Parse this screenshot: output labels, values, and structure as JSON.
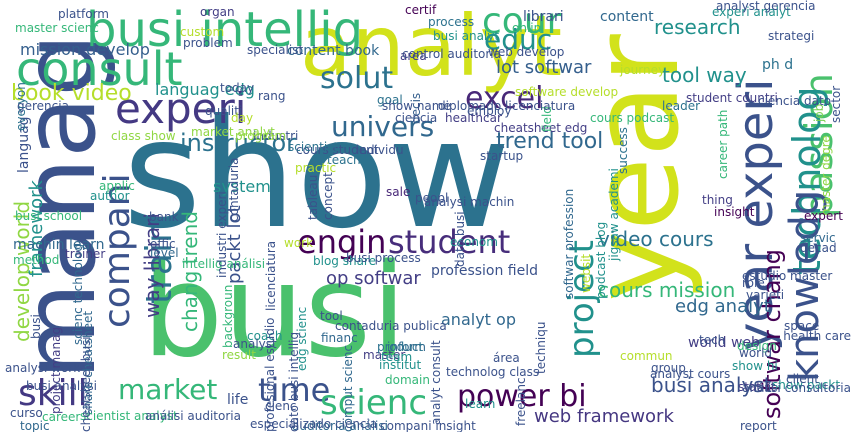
{
  "words": [
    {
      "text": "show",
      "color": "#2c728e"
    },
    {
      "text": "busi",
      "color": "#4ac16d"
    },
    {
      "text": "year",
      "color": "#d2e21b"
    },
    {
      "text": "analyt",
      "color": "#d2e21b"
    },
    {
      "text": "manag",
      "color": "#3b528b"
    },
    {
      "text": "busi intellig",
      "color": "#35b779"
    },
    {
      "text": "consult",
      "color": "#35b779"
    },
    {
      "text": "cour",
      "color": "#35b779"
    },
    {
      "text": "experi",
      "color": "#443983"
    },
    {
      "text": "educ",
      "color": "#21918c"
    },
    {
      "text": "solut",
      "color": "#2c728e"
    },
    {
      "text": "excel",
      "color": "#482878"
    },
    {
      "text": "univers",
      "color": "#31688e"
    },
    {
      "text": "year experi",
      "color": "#3b528b"
    },
    {
      "text": "passion",
      "color": "#4ac16d"
    },
    {
      "text": "technolog",
      "color": "#21918c"
    },
    {
      "text": "knowledg",
      "color": "#3b528b"
    },
    {
      "text": "compani",
      "color": "#3b528b"
    },
    {
      "text": "train",
      "color": "#2c728e"
    },
    {
      "text": "engin",
      "color": "#440154"
    },
    {
      "text": "student",
      "color": "#472d7b"
    },
    {
      "text": "project",
      "color": "#21918c"
    },
    {
      "text": "market",
      "color": "#35b779"
    },
    {
      "text": "time",
      "color": "#3b528b"
    },
    {
      "text": "scienc",
      "color": "#35b779"
    },
    {
      "text": "power bi",
      "color": "#440154"
    },
    {
      "text": "skill",
      "color": "#443983"
    },
    {
      "text": "book video",
      "color": "#b5de2b"
    },
    {
      "text": "languag edg",
      "color": "#21918c"
    },
    {
      "text": "lot softwar",
      "color": "#355f8d"
    },
    {
      "text": "tool way",
      "color": "#21918c"
    },
    {
      "text": "librari",
      "color": "#3b528b"
    },
    {
      "text": "content",
      "color": "#31688e"
    },
    {
      "text": "research",
      "color": "#21918c"
    },
    {
      "text": "mission develop",
      "color": "#355f8d"
    },
    {
      "text": "content book",
      "color": "#31688e"
    },
    {
      "text": "instructor",
      "color": "#2c728e"
    },
    {
      "text": "trend tool",
      "color": "#31688e"
    },
    {
      "text": "video cours",
      "color": "#2c728e"
    },
    {
      "text": "softwar chang",
      "color": "#440154"
    },
    {
      "text": "chang trend",
      "color": "#35b779"
    },
    {
      "text": "way librari",
      "color": "#433e85"
    },
    {
      "text": "packt lot",
      "color": "#3b528b"
    },
    {
      "text": "op softwar",
      "color": "#433e85"
    },
    {
      "text": "profession field",
      "color": "#3b528b"
    },
    {
      "text": "cours mission",
      "color": "#35b779"
    },
    {
      "text": "edg analyt",
      "color": "#31688e"
    },
    {
      "text": "analyt op",
      "color": "#31688e"
    },
    {
      "text": "world web",
      "color": "#433e85"
    },
    {
      "text": "busi analyst",
      "color": "#3b528b"
    },
    {
      "text": "web framework",
      "color": "#453781"
    },
    {
      "text": "develop world",
      "color": "#90d743"
    },
    {
      "text": "framework",
      "color": "#21918c"
    },
    {
      "text": "languag",
      "color": "#3b528b"
    },
    {
      "text": "machin learn",
      "color": "#31688e"
    },
    {
      "text": "system",
      "color": "#21918c"
    },
    {
      "text": "platform",
      "color": "#3b528b"
    },
    {
      "text": "organ",
      "color": "#433e85"
    },
    {
      "text": "problem",
      "color": "#3b528b"
    },
    {
      "text": "certif",
      "color": "#440154"
    },
    {
      "text": "process",
      "color": "#2c728e"
    },
    {
      "text": "experi analyt",
      "color": "#21918c"
    },
    {
      "text": "onlin",
      "color": "#35b779"
    },
    {
      "text": "web develop",
      "color": "#3b528b"
    },
    {
      "text": "area",
      "color": "#433e85"
    },
    {
      "text": "strategi",
      "color": "#3b528b"
    },
    {
      "text": "ph d",
      "color": "#2c728e"
    },
    {
      "text": "job",
      "color": "#7ad151"
    },
    {
      "text": "student countri",
      "color": "#433e85"
    },
    {
      "text": "cheatsheet edg",
      "color": "#433e85"
    },
    {
      "text": "master degre",
      "color": "#90d743"
    },
    {
      "text": "decis",
      "color": "#355f8d"
    },
    {
      "text": "field",
      "color": "#35b779"
    },
    {
      "text": "healthcar",
      "color": "#433e85"
    },
    {
      "text": "industri",
      "color": "#3b528b"
    },
    {
      "text": "cours student",
      "color": "#3b528b"
    },
    {
      "text": "individu",
      "color": "#3b528b"
    },
    {
      "text": "teach",
      "color": "#2c728e"
    },
    {
      "text": "tableau",
      "color": "#3b528b"
    },
    {
      "text": "sale",
      "color": "#482878"
    },
    {
      "text": "peopl",
      "color": "#3b528b"
    },
    {
      "text": "thing",
      "color": "#433e85"
    },
    {
      "text": "insight",
      "color": "#440154"
    },
    {
      "text": "expert",
      "color": "#440154"
    },
    {
      "text": "servic",
      "color": "#31688e"
    },
    {
      "text": "decad",
      "color": "#3b528b"
    },
    {
      "text": "role",
      "color": "#3b528b"
    },
    {
      "text": "varieti",
      "color": "#3b528b"
    },
    {
      "text": "design",
      "color": "#35b779"
    },
    {
      "text": "show hi",
      "color": "#21918c"
    },
    {
      "text": "world",
      "color": "#3b528b"
    },
    {
      "text": "statist",
      "color": "#433e85"
    },
    {
      "text": "show packt",
      "color": "#21918c"
    },
    {
      "text": "group",
      "color": "#3b528b"
    },
    {
      "text": "bank",
      "color": "#3b528b"
    },
    {
      "text": "level",
      "color": "#31688e"
    },
    {
      "text": "work",
      "color": "#b5de2b"
    },
    {
      "text": "econom",
      "color": "#21918c"
    },
    {
      "text": "method",
      "color": "#35b779"
    },
    {
      "text": "applic",
      "color": "#35b779"
    },
    {
      "text": "author",
      "color": "#21918c"
    },
    {
      "text": "coach",
      "color": "#21918c"
    },
    {
      "text": "financ",
      "color": "#31688e"
    },
    {
      "text": "master",
      "color": "#433e85"
    },
    {
      "text": "tool",
      "color": "#3b528b"
    },
    {
      "text": "result",
      "color": "#90d743"
    },
    {
      "text": "life",
      "color": "#3b528b"
    },
    {
      "text": "inform",
      "color": "#31688e"
    },
    {
      "text": "team",
      "color": "#21918c"
    },
    {
      "text": "institut",
      "color": "#21918c"
    },
    {
      "text": "product",
      "color": "#2c728e"
    },
    {
      "text": "techniqu",
      "color": "#3b528b"
    },
    {
      "text": "learn",
      "color": "#21918c"
    },
    {
      "text": "curso",
      "color": "#3b528b"
    },
    {
      "text": "career",
      "color": "#35b779"
    },
    {
      "text": "topic",
      "color": "#31688e"
    },
    {
      "text": "trainer",
      "color": "#433e85"
    },
    {
      "text": "scienc technolog",
      "color": "#31688e"
    },
    {
      "text": "analysi work",
      "color": "#3b528b"
    },
    {
      "text": "busi analysi",
      "color": "#3b528b"
    },
    {
      "text": "project manag",
      "color": "#433e85"
    },
    {
      "text": "comput scienc",
      "color": "#31688e"
    },
    {
      "text": "edg scienc",
      "color": "#21918c"
    },
    {
      "text": "share cheatsheet",
      "color": "#31688e"
    },
    {
      "text": "backgroun",
      "color": "#35b779"
    },
    {
      "text": "concept",
      "color": "#3b528b"
    },
    {
      "text": "blog share",
      "color": "#21918c"
    },
    {
      "text": "softwar profession",
      "color": "#31688e"
    },
    {
      "text": "success",
      "color": "#2c728e"
    },
    {
      "text": "scientist",
      "color": "#2c728e"
    },
    {
      "text": "class show",
      "color": "#90d743"
    },
    {
      "text": "market analyt",
      "color": "#90d743"
    },
    {
      "text": "everyon",
      "color": "#2c728e"
    },
    {
      "text": "program",
      "color": "#90d743"
    },
    {
      "text": "practic",
      "color": "#b5de2b"
    },
    {
      "text": "today",
      "color": "#3b528b"
    },
    {
      "text": "custom",
      "color": "#b5de2b"
    },
    {
      "text": "specialist",
      "color": "#3b528b"
    },
    {
      "text": "qualiti",
      "color": "#3b528b"
    },
    {
      "text": "day",
      "color": "#b5de2b"
    },
    {
      "text": "rang",
      "color": "#3b528b"
    },
    {
      "text": "goal",
      "color": "#2c728e"
    },
    {
      "text": "employ",
      "color": "#3b528b"
    },
    {
      "text": "leader",
      "color": "#2c728e"
    },
    {
      "text": "ciencia dato",
      "color": "#3b528b"
    },
    {
      "text": "ciencia",
      "color": "#3b528b"
    },
    {
      "text": "show name",
      "color": "#3b528b"
    },
    {
      "text": "busi analyt",
      "color": "#21918c"
    },
    {
      "text": "cours podcast",
      "color": "#35b779"
    },
    {
      "text": "podcast blog",
      "color": "#21918c"
    },
    {
      "text": "jigsaw academi",
      "color": "#21918c"
    },
    {
      "text": "websit",
      "color": "#b5de2b"
    },
    {
      "text": "startup",
      "color": "#3b528b"
    },
    {
      "text": "analysi machin",
      "color": "#3b528b"
    },
    {
      "text": "dato busi",
      "color": "#3b528b"
    },
    {
      "text": "busi process",
      "color": "#3b528b"
    },
    {
      "text": "busi school",
      "color": "#35b779"
    },
    {
      "text": "offic",
      "color": "#3b528b"
    },
    {
      "text": "intellig análisi",
      "color": "#35b779"
    },
    {
      "text": "scientist analyst",
      "color": "#35b779"
    },
    {
      "text": "análisi auditoria",
      "color": "#3b528b"
    },
    {
      "text": "auditoria análisi",
      "color": "#31688e"
    },
    {
      "text": "analyst gerencia",
      "color": "#3b528b"
    },
    {
      "text": "master scienc",
      "color": "#35b779"
    },
    {
      "text": "especializado ciencia",
      "color": "#3b528b"
    },
    {
      "text": "compani insight",
      "color": "#3b528b"
    },
    {
      "text": "report",
      "color": "#3b528b"
    },
    {
      "text": "domain",
      "color": "#35b779"
    },
    {
      "text": "área",
      "color": "#3b528b"
    },
    {
      "text": "analyst cours",
      "color": "#3b528b"
    },
    {
      "text": "commun",
      "color": "#b5de2b"
    },
    {
      "text": "tech",
      "color": "#3b528b"
    },
    {
      "text": "analyst",
      "color": "#3b528b"
    },
    {
      "text": "estudio master",
      "color": "#3b528b"
    },
    {
      "text": "contaduria publica",
      "color": "#3b528b"
    },
    {
      "text": "contaduria",
      "color": "#3b528b"
    },
    {
      "text": "licenciatura",
      "color": "#3b528b"
    },
    {
      "text": "profesional estudio",
      "color": "#3b528b"
    },
    {
      "text": "gerencia",
      "color": "#3b528b"
    },
    {
      "text": "control auditoria",
      "color": "#3b528b"
    },
    {
      "text": "diplomado licenciatura",
      "color": "#3b528b"
    },
    {
      "text": "career path",
      "color": "#35b779"
    },
    {
      "text": "sector",
      "color": "#3b528b"
    },
    {
      "text": "space",
      "color": "#3b528b"
    },
    {
      "text": "health care",
      "color": "#3b528b"
    },
    {
      "text": "software develop",
      "color": "#b5de2b"
    },
    {
      "text": "journey",
      "color": "#b5de2b"
    },
    {
      "text": "cienc",
      "color": "#3b528b"
    },
    {
      "text": "freelanc",
      "color": "#3b528b"
    },
    {
      "text": "client",
      "color": "#3b528b"
    },
    {
      "text": "análisi consultoria",
      "color": "#3b528b"
    },
    {
      "text": "industri experi",
      "color": "#3b528b"
    },
    {
      "text": "analyt consult",
      "color": "#3b528b"
    },
    {
      "text": "dato busi intellig",
      "color": "#3b528b"
    },
    {
      "text": "technolog class",
      "color": "#3b528b"
    },
    {
      "text": "cheatsheet busi",
      "color": "#3b528b"
    },
    {
      "text": "busi",
      "color": "#3b528b"
    }
  ]
}
